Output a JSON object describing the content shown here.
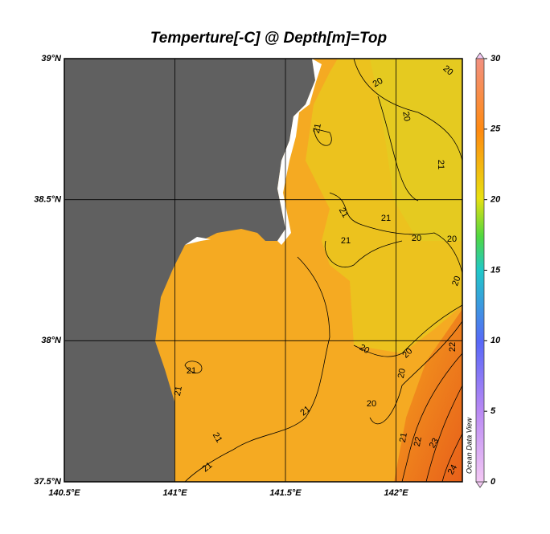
{
  "chart_data": {
    "type": "map",
    "title": "Temperture[-C] @ Depth[m]=Top",
    "xlim": [
      140.5,
      142.3
    ],
    "ylim": [
      37.5,
      39
    ],
    "xticks": [
      {
        "value": 140.5,
        "label": "140.5°E"
      },
      {
        "value": 141,
        "label": "141°E"
      },
      {
        "value": 141.5,
        "label": "141.5°E"
      },
      {
        "value": 142,
        "label": "142°E"
      }
    ],
    "yticks": [
      {
        "value": 37.5,
        "label": "37.5°N"
      },
      {
        "value": 38,
        "label": "38°N"
      },
      {
        "value": 38.5,
        "label": "38.5°N"
      },
      {
        "value": 39,
        "label": "39°N"
      }
    ],
    "grid": true,
    "colorbar": {
      "lim": [
        0,
        30
      ],
      "ticks": [
        0,
        5,
        10,
        15,
        20,
        25,
        30
      ]
    },
    "contour_labels": [
      20,
      20,
      20,
      21,
      21,
      21,
      21,
      20,
      20,
      21,
      20,
      20,
      20,
      22,
      20,
      21,
      21,
      20,
      21,
      21,
      22,
      23,
      24,
      21,
      21
    ],
    "watermark": "Ocean Data View"
  }
}
